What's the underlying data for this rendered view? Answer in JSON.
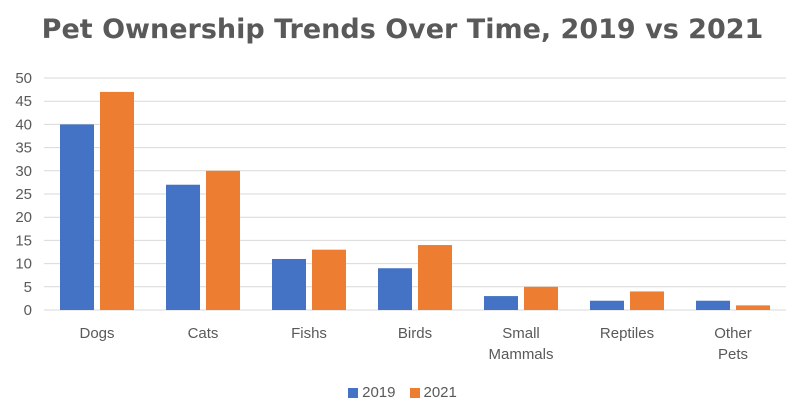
{
  "chart_data": {
    "type": "bar",
    "title": "Pet Ownership Trends Over Time, 2019 vs 2021",
    "xlabel": "",
    "ylabel": "",
    "categories": [
      "Dogs",
      "Cats",
      "Fishs",
      "Birds",
      "Small Mammals",
      "Reptiles",
      "Other Pets"
    ],
    "series": [
      {
        "name": "2019",
        "values": [
          40,
          27,
          11,
          9,
          3,
          2,
          2
        ],
        "color": "#4472C4"
      },
      {
        "name": "2021",
        "values": [
          47,
          30,
          13,
          14,
          5,
          4,
          1
        ],
        "color": "#ED7D31"
      }
    ],
    "ylim": [
      0,
      50
    ],
    "yticks": [
      0,
      5,
      10,
      15,
      20,
      25,
      30,
      35,
      40,
      45,
      50
    ],
    "grid": true,
    "legend": "bottom"
  }
}
